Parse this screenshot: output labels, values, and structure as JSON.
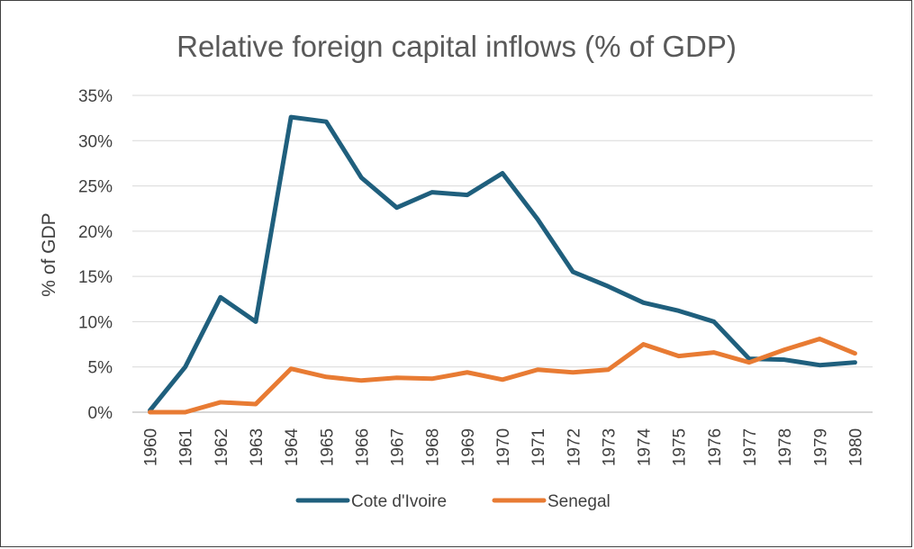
{
  "chart_data": {
    "type": "line",
    "title": "Relative foreign capital inflows (% of GDP)",
    "xlabel": "",
    "ylabel": "% of GDP",
    "ylim": [
      0,
      35
    ],
    "yticks": [
      0,
      5,
      10,
      15,
      20,
      25,
      30,
      35
    ],
    "ytick_labels": [
      "0%",
      "5%",
      "10%",
      "15%",
      "20%",
      "25%",
      "30%",
      "35%"
    ],
    "categories": [
      "1960",
      "1961",
      "1962",
      "1963",
      "1964",
      "1965",
      "1966",
      "1967",
      "1968",
      "1969",
      "1970",
      "1971",
      "1972",
      "1973",
      "1974",
      "1975",
      "1976",
      "1977",
      "1978",
      "1979",
      "1980"
    ],
    "grid": true,
    "legend_position": "bottom",
    "series": [
      {
        "name": "Cote d'Ivoire",
        "color": "#1f5f7d",
        "values": [
          0.2,
          5.0,
          12.7,
          10.0,
          32.6,
          32.1,
          25.9,
          22.6,
          24.3,
          24.0,
          26.4,
          21.3,
          15.5,
          13.9,
          12.1,
          11.2,
          10.0,
          5.9,
          5.8,
          5.2,
          5.5
        ]
      },
      {
        "name": "Senegal",
        "color": "#e87b33",
        "values": [
          0.0,
          0.0,
          1.1,
          0.9,
          4.8,
          3.9,
          3.5,
          3.8,
          3.7,
          4.4,
          3.6,
          4.7,
          4.4,
          4.7,
          7.5,
          6.2,
          6.6,
          5.5,
          6.9,
          8.1,
          6.5
        ]
      }
    ]
  }
}
